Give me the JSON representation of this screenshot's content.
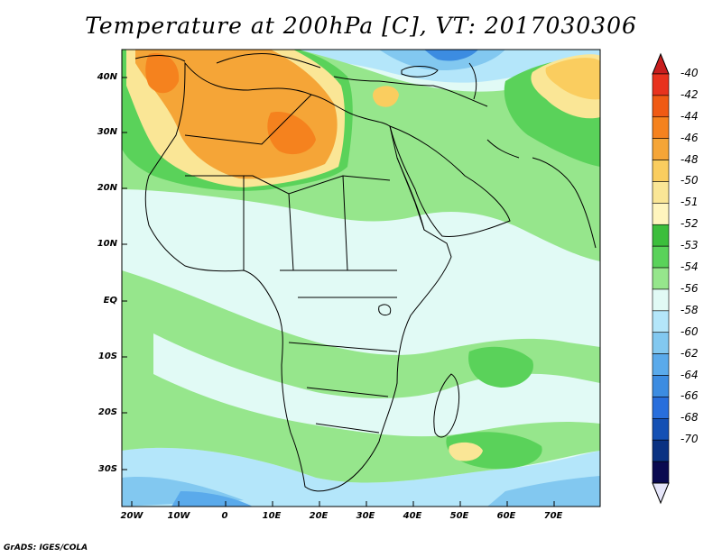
{
  "title": "Temperature at 200hPa [C], VT: 2017030306",
  "credit": "GrADS: IGES/COLA",
  "lat_labels": [
    "40N",
    "30N",
    "20N",
    "10N",
    "EQ",
    "10S",
    "20S",
    "30S"
  ],
  "lon_labels": [
    "20W",
    "10W",
    "0",
    "10E",
    "20E",
    "30E",
    "40E",
    "50E",
    "60E",
    "70E"
  ],
  "colorbar": {
    "labels": [
      "-40",
      "-42",
      "-44",
      "-46",
      "-48",
      "-50",
      "-51",
      "-52",
      "-53",
      "-54",
      "-56",
      "-58",
      "-60",
      "-62",
      "-64",
      "-66",
      "-68",
      "-70"
    ],
    "colors": [
      "#e8321e",
      "#f05a14",
      "#f5821e",
      "#f5a537",
      "#facd5f",
      "#fae696",
      "#fff5be",
      "#3cbe3c",
      "#5ad25a",
      "#96e68c",
      "#e1faf5",
      "#b4e6fa",
      "#82c8f0",
      "#5aaaeb",
      "#3c8ce1",
      "#286edc",
      "#1450b4",
      "#0a3282",
      "#0a0a50"
    ],
    "top_arrow_color": "#c81e1e",
    "bottom_arrow_color": "#e6e6fa"
  },
  "map_colors": {
    "ocean_cool": "#e1faf5",
    "light_green": "#96e68c",
    "green": "#5ad25a",
    "dark_green": "#3cbe3c",
    "yellow": "#fae696",
    "orange_light": "#facd5f",
    "orange": "#f5a537",
    "orange_dark": "#f5821e",
    "blue_light": "#b4e6fa",
    "blue": "#82c8f0",
    "blue_mid": "#5aaaeb",
    "blue_dark": "#3c8ce1"
  }
}
